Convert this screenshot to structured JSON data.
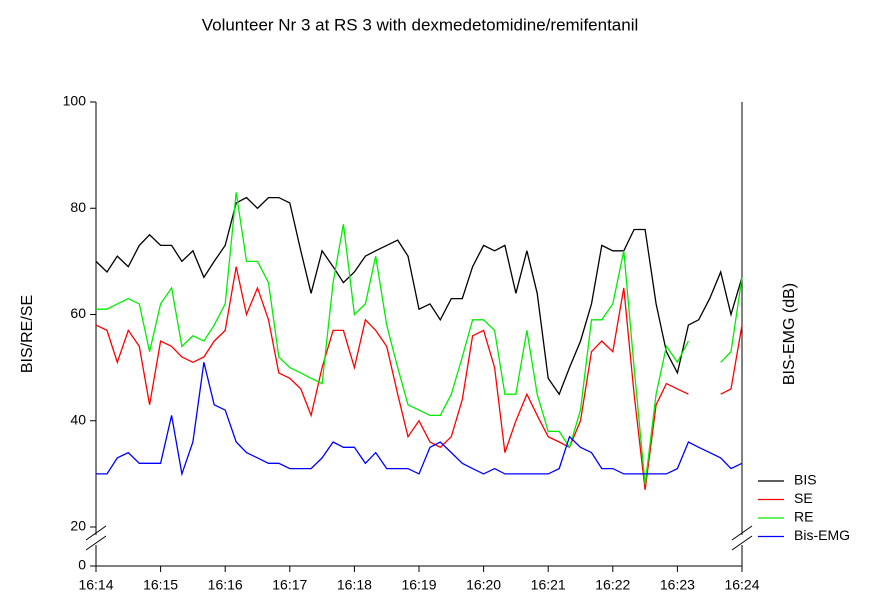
{
  "chart_data": {
    "type": "line",
    "title": "Volunteer Nr 3 at RS 3 with dexmedetomidine/remifentanil",
    "y_label": "BIS/RE/SE",
    "y2_label": "BIS-EMG (dB)",
    "broken_axis": true,
    "xlim": [
      974,
      984
    ],
    "xticks": [
      {
        "value": 974,
        "label": "16:14"
      },
      {
        "value": 975,
        "label": "16:15"
      },
      {
        "value": 976,
        "label": "16:16"
      },
      {
        "value": 977,
        "label": "16:17"
      },
      {
        "value": 978,
        "label": "16:18"
      },
      {
        "value": 979,
        "label": "16:19"
      },
      {
        "value": 980,
        "label": "16:20"
      },
      {
        "value": 981,
        "label": "16:21"
      },
      {
        "value": 982,
        "label": "16:22"
      },
      {
        "value": 983,
        "label": "16:23"
      },
      {
        "value": 984,
        "label": "16:24"
      }
    ],
    "ylim": [
      0,
      100
    ],
    "yticks": [
      0,
      20,
      40,
      60,
      80,
      100
    ],
    "legend": "lower right outside",
    "x": [
      974,
      974.17,
      974.33,
      974.5,
      974.67,
      974.83,
      975,
      975.17,
      975.33,
      975.5,
      975.67,
      975.83,
      976,
      976.17,
      976.33,
      976.5,
      976.67,
      976.83,
      977,
      977.17,
      977.33,
      977.5,
      977.67,
      977.83,
      978,
      978.17,
      978.33,
      978.5,
      978.67,
      978.83,
      979,
      979.17,
      979.33,
      979.5,
      979.67,
      979.83,
      980,
      980.17,
      980.33,
      980.5,
      980.67,
      980.83,
      981,
      981.17,
      981.33,
      981.5,
      981.67,
      981.83,
      982,
      982.17,
      982.33,
      982.5,
      982.67,
      982.83,
      983,
      983.17,
      983.33,
      983.5,
      983.67,
      983.83,
      984
    ],
    "series": [
      {
        "name": "BIS",
        "color": "#000000",
        "values": [
          70,
          68,
          71,
          69,
          73,
          75,
          73,
          73,
          70,
          72,
          67,
          70,
          73,
          81,
          82,
          80,
          82,
          82,
          81,
          72,
          64,
          72,
          69,
          66,
          68,
          71,
          72,
          73,
          74,
          71,
          61,
          62,
          59,
          63,
          63,
          69,
          73,
          72,
          73,
          64,
          72,
          64,
          48,
          45,
          50,
          55,
          62,
          73,
          72,
          72,
          76,
          76,
          62,
          53,
          49,
          58,
          59,
          63,
          68,
          60,
          67
        ]
      },
      {
        "name": "SE",
        "color": "#ff0000",
        "values": [
          58,
          57,
          51,
          57,
          54,
          43,
          55,
          54,
          52,
          51,
          52,
          55,
          57,
          69,
          60,
          65,
          59,
          49,
          48,
          46,
          41,
          50,
          57,
          57,
          50,
          59,
          57,
          54,
          45,
          37,
          40,
          36,
          35,
          37,
          44,
          56,
          57,
          50,
          34,
          40,
          45,
          41,
          37,
          36,
          35,
          40,
          53,
          55,
          53,
          65,
          45,
          27,
          43,
          47,
          46,
          45,
          null,
          null,
          45,
          46,
          58
        ]
      },
      {
        "name": "RE",
        "color": "#00ee00",
        "values": [
          61,
          61,
          62,
          63,
          62,
          53,
          62,
          65,
          54,
          56,
          55,
          58,
          62,
          83,
          70,
          70,
          66,
          52,
          50,
          49,
          48,
          47,
          66,
          77,
          60,
          62,
          71,
          58,
          50,
          43,
          42,
          41,
          41,
          45,
          52,
          59,
          59,
          57,
          45,
          45,
          57,
          45,
          38,
          38,
          35,
          42,
          59,
          59,
          62,
          72,
          50,
          28,
          45,
          54,
          51,
          55,
          null,
          null,
          51,
          53,
          67
        ]
      },
      {
        "name": "Bis-EMG",
        "color": "#0000ff",
        "values": [
          30,
          30,
          33,
          34,
          32,
          32,
          32,
          41,
          30,
          36,
          51,
          43,
          42,
          36,
          34,
          33,
          32,
          32,
          31,
          31,
          31,
          33,
          36,
          35,
          35,
          32,
          34,
          31,
          31,
          31,
          30,
          35,
          36,
          34,
          32,
          31,
          30,
          31,
          30,
          30,
          30,
          30,
          30,
          31,
          37,
          35,
          34,
          31,
          31,
          30,
          30,
          30,
          30,
          30,
          31,
          36,
          35,
          34,
          33,
          31,
          32
        ]
      }
    ]
  }
}
